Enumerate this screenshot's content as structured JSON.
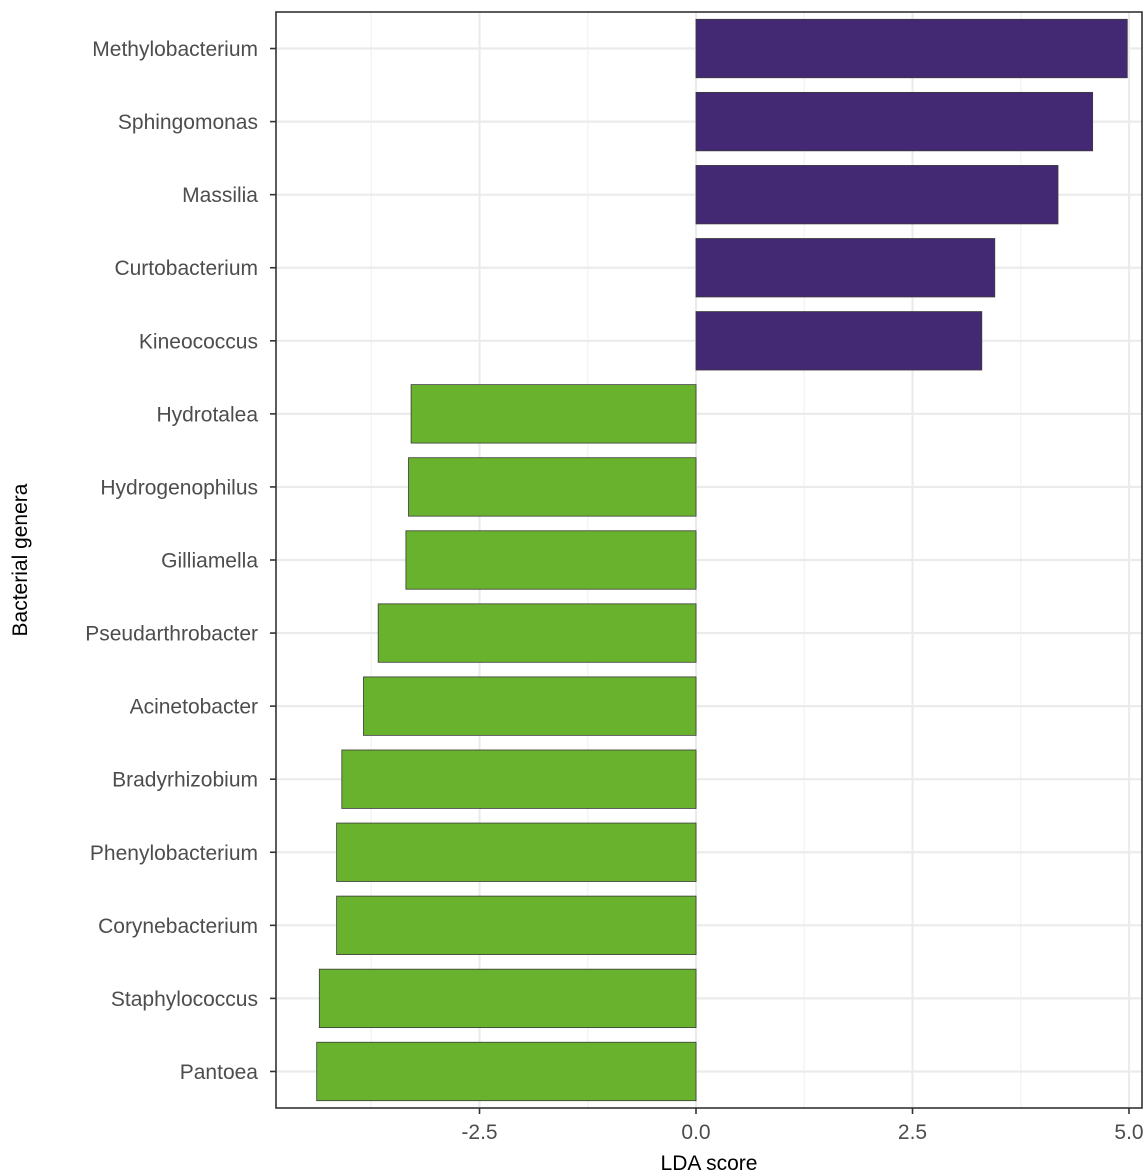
{
  "chart_data": {
    "type": "bar",
    "orientation": "horizontal",
    "xlabel": "LDA score",
    "ylabel": "Bacterial genera",
    "xlim": [
      -4.85,
      5.15
    ],
    "x_ticks": [
      -2.5,
      0.0,
      2.5,
      5.0
    ],
    "x_tick_labels": [
      "-2.5",
      "0.0",
      "2.5",
      "5.0"
    ],
    "grid": true,
    "legend": "none",
    "colors": {
      "positive": "#432874",
      "negative": "#68B22E",
      "bar_stroke": "#3a3a3a"
    },
    "categories": [
      "Methylobacterium",
      "Sphingomonas",
      "Massilia",
      "Curtobacterium",
      "Kineococcus",
      "Hydrotalea",
      "Hydrogenophilus",
      "Gilliamella",
      "Pseudarthrobacter",
      "Acinetobacter",
      "Bradyrhizobium",
      "Phenylobacterium",
      "Corynebacterium",
      "Staphylococcus",
      "Pantoea"
    ],
    "values": [
      4.98,
      4.58,
      4.18,
      3.45,
      3.3,
      -3.29,
      -3.32,
      -3.35,
      -3.67,
      -3.84,
      -4.09,
      -4.15,
      -4.15,
      -4.35,
      -4.38
    ]
  }
}
